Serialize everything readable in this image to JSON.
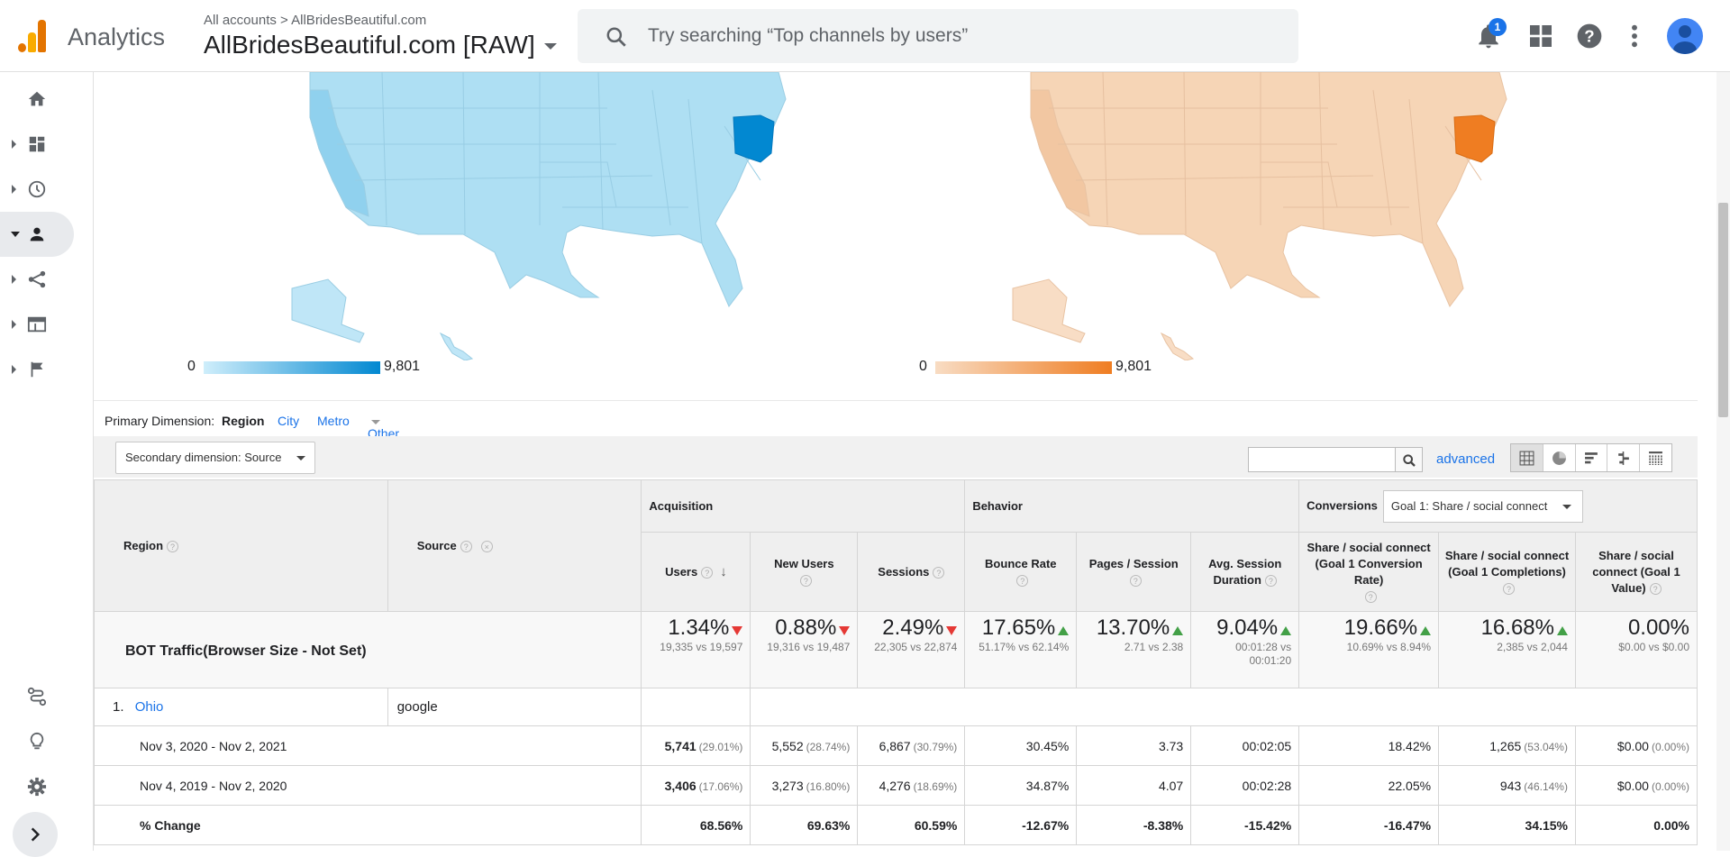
{
  "header": {
    "app_name": "Analytics",
    "breadcrumb": "All accounts > AllBridesBeautiful.com",
    "property": "AllBridesBeautiful.com [RAW]",
    "search_placeholder": "Try searching “Top channels by users”",
    "notification_count": "1"
  },
  "maps": {
    "left": {
      "min_label": "0",
      "max_label": "9,801",
      "color": "#0288d1",
      "highlight": "Ohio"
    },
    "right": {
      "min_label": "0",
      "max_label": "9,801",
      "color": "#ef7d22",
      "highlight": "Ohio"
    }
  },
  "dimension_bar": {
    "label": "Primary Dimension:",
    "active": "Region",
    "options": [
      "City",
      "Metro",
      "Other"
    ]
  },
  "toolbar": {
    "secondary_dimension": "Secondary dimension: Source",
    "advanced": "advanced"
  },
  "table": {
    "col_region": "Region",
    "col_source": "Source",
    "group_acquisition": "Acquisition",
    "group_behavior": "Behavior",
    "group_conversions": "Conversions",
    "goal_select": "Goal 1: Share / social connect",
    "columns": [
      "Users",
      "New Users",
      "Sessions",
      "Bounce Rate",
      "Pages / Session",
      "Avg. Session Duration",
      "Share / social connect (Goal 1 Conversion Rate)",
      "Share / social connect (Goal 1 Completions)",
      "Share / social connect (Goal 1 Value)"
    ],
    "totals_label": "BOT Traffic(Browser Size - Not Set)",
    "totals": [
      {
        "value": "1.34%",
        "dir": "down",
        "detail": "19,335 vs 19,597"
      },
      {
        "value": "0.88%",
        "dir": "down",
        "detail": "19,316 vs 19,487"
      },
      {
        "value": "2.49%",
        "dir": "down",
        "detail": "22,305 vs 22,874"
      },
      {
        "value": "17.65%",
        "dir": "up",
        "detail": "51.17% vs 62.14%"
      },
      {
        "value": "13.70%",
        "dir": "up",
        "detail": "2.71 vs 2.38"
      },
      {
        "value": "9.04%",
        "dir": "up",
        "detail": "00:01:28 vs 00:01:20"
      },
      {
        "value": "19.66%",
        "dir": "up",
        "detail": "10.69% vs 8.94%"
      },
      {
        "value": "16.68%",
        "dir": "up",
        "detail": "2,385 vs 2,044"
      },
      {
        "value": "0.00%",
        "dir": "",
        "detail": "$0.00 vs $0.00"
      }
    ],
    "row": {
      "index": "1.",
      "region": "Ohio",
      "source": "google"
    },
    "periods": [
      {
        "label": "Nov 3, 2020 - Nov 2, 2021",
        "cells": [
          {
            "v": "5,741",
            "p": "(29.01%)"
          },
          {
            "v": "5,552",
            "p": "(28.74%)"
          },
          {
            "v": "6,867",
            "p": "(30.79%)"
          },
          {
            "v": "30.45%",
            "p": ""
          },
          {
            "v": "3.73",
            "p": ""
          },
          {
            "v": "00:02:05",
            "p": ""
          },
          {
            "v": "18.42%",
            "p": ""
          },
          {
            "v": "1,265",
            "p": "(53.04%)"
          },
          {
            "v": "$0.00",
            "p": "(0.00%)"
          }
        ]
      },
      {
        "label": "Nov 4, 2019 - Nov 2, 2020",
        "cells": [
          {
            "v": "3,406",
            "p": "(17.06%)"
          },
          {
            "v": "3,273",
            "p": "(16.80%)"
          },
          {
            "v": "4,276",
            "p": "(18.69%)"
          },
          {
            "v": "34.87%",
            "p": ""
          },
          {
            "v": "4.07",
            "p": ""
          },
          {
            "v": "00:02:28",
            "p": ""
          },
          {
            "v": "22.05%",
            "p": ""
          },
          {
            "v": "943",
            "p": "(46.14%)"
          },
          {
            "v": "$0.00",
            "p": "(0.00%)"
          }
        ]
      }
    ],
    "change": {
      "label": "% Change",
      "values": [
        "68.56%",
        "69.63%",
        "60.59%",
        "-12.67%",
        "-8.38%",
        "-15.42%",
        "-16.47%",
        "34.15%",
        "0.00%"
      ]
    }
  }
}
